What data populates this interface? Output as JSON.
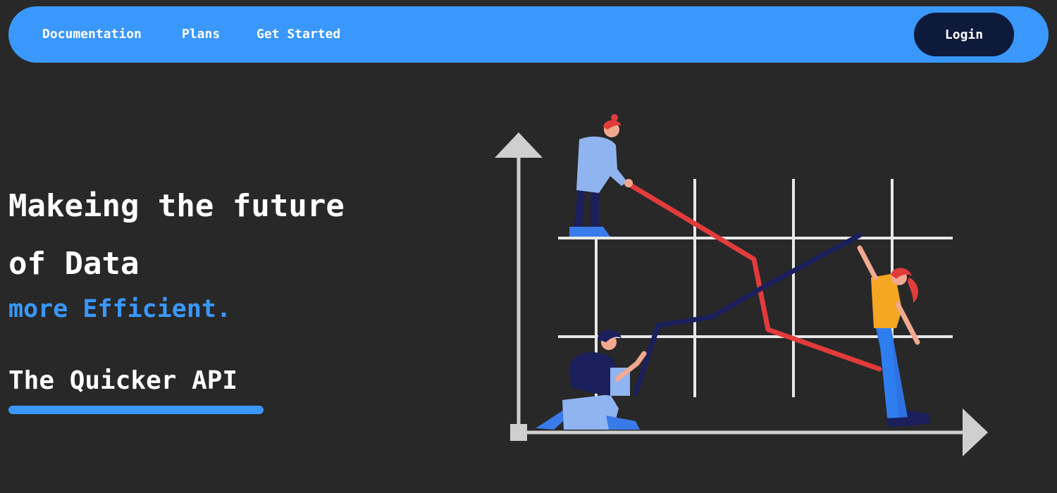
{
  "nav": {
    "links": [
      {
        "label": "Documentation"
      },
      {
        "label": "Plans"
      },
      {
        "label": "Get Started"
      }
    ],
    "login_label": "Login"
  },
  "hero": {
    "title_line1": "Makeing the future",
    "title_line2": "of Data",
    "accent": "more Efficient.",
    "tagline": "The Quicker API"
  },
  "colors": {
    "background": "#282828",
    "accent_blue": "#3a98fc",
    "login_bg": "#0d1a3a",
    "line_red": "#e23b3b",
    "line_navy": "#1b1f5c"
  },
  "illustration": {
    "name": "data-analysts-chart-illustration"
  }
}
